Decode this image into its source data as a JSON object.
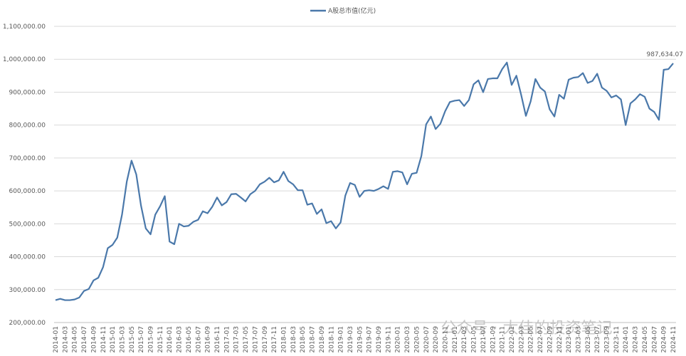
{
  "chart_data": {
    "type": "line",
    "legend_position": "top",
    "categories": [
      "2014-01",
      null,
      "2014-03",
      null,
      "2014-05",
      null,
      "2014-07",
      null,
      "2014-09",
      null,
      "2014-11",
      null,
      "2015-01",
      null,
      "2015-03",
      null,
      "2015-05",
      null,
      "2015-07",
      null,
      "2015-09",
      null,
      "2015-11",
      null,
      "2016-01",
      null,
      "2016-03",
      null,
      "2016-05",
      null,
      "2016-07",
      null,
      "2016-09",
      null,
      "2016-11",
      null,
      "2017-01",
      null,
      "2017-03",
      null,
      "2017-05",
      null,
      "2017-07",
      null,
      "2017-09",
      null,
      "2017-11",
      null,
      "2018-01",
      null,
      "2018-03",
      null,
      "2018-05",
      null,
      "2018-07",
      null,
      "2018-09",
      null,
      "2018-11",
      null,
      "2019-01",
      null,
      "2019-03",
      null,
      "2019-05",
      null,
      "2019-07",
      null,
      "2019-09",
      null,
      "2019-11",
      null,
      "2020-01",
      null,
      "2020-03",
      null,
      "2020-05",
      null,
      "2020-07",
      null,
      "2020-09",
      null,
      "2020-11",
      null,
      "2021-01",
      null,
      "2021-03",
      null,
      "2021-05",
      null,
      "2021-07",
      null,
      "2021-09",
      null,
      "2021-11",
      null,
      "2022-01",
      null,
      "2022-03",
      null,
      "2022-05",
      null,
      "2022-07",
      null,
      "2022-09",
      null,
      "2022-11",
      null,
      "2023-01",
      null,
      "2023-03",
      null,
      "2023-05",
      null,
      "2023-07",
      null,
      "2023-09",
      null,
      "2023-11",
      null,
      "2024-01",
      null,
      "2024-03",
      null,
      "2024-05",
      null,
      "2024-07",
      null,
      "2024-09",
      null,
      "2024-11"
    ],
    "series": [
      {
        "name": "A股总市值(亿元)",
        "color": "#4a78aa",
        "values": [
          268000,
          272000,
          268000,
          268000,
          270000,
          276000,
          296000,
          302000,
          328000,
          336000,
          368000,
          426000,
          436000,
          458000,
          528000,
          628000,
          692000,
          650000,
          555000,
          486000,
          468000,
          528000,
          553000,
          584000,
          446000,
          438000,
          500000,
          492000,
          494000,
          506000,
          512000,
          538000,
          532000,
          552000,
          580000,
          556000,
          566000,
          590000,
          591000,
          580000,
          568000,
          590000,
          600000,
          620000,
          628000,
          640000,
          626000,
          632000,
          658000,
          630000,
          620000,
          602000,
          602000,
          558000,
          562000,
          530000,
          544000,
          502000,
          508000,
          486000,
          504000,
          586000,
          624000,
          618000,
          582000,
          600000,
          602000,
          600000,
          606000,
          614000,
          606000,
          658000,
          660000,
          656000,
          620000,
          652000,
          655000,
          706000,
          802000,
          826000,
          788000,
          804000,
          842000,
          870000,
          874000,
          876000,
          858000,
          876000,
          924000,
          936000,
          900000,
          940000,
          942000,
          942000,
          970000,
          990000,
          922000,
          950000,
          892000,
          828000,
          872000,
          940000,
          914000,
          902000,
          848000,
          826000,
          892000,
          880000,
          938000,
          944000,
          946000,
          958000,
          928000,
          934000,
          956000,
          914000,
          904000,
          884000,
          890000,
          878000,
          800000,
          866000,
          878000,
          894000,
          886000,
          850000,
          840000,
          816000,
          968000,
          970000,
          987634.07
        ],
        "value_labels": [
          null,
          null,
          null,
          null,
          null,
          null,
          null,
          null,
          null,
          null,
          null,
          null,
          null,
          null,
          null,
          null,
          null,
          null,
          null,
          null,
          null,
          null,
          null,
          null,
          null,
          null,
          null,
          null,
          null,
          null,
          null,
          null,
          null,
          null,
          null,
          null,
          null,
          null,
          null,
          null,
          null,
          null,
          null,
          null,
          null,
          null,
          null,
          null,
          null,
          null,
          null,
          null,
          null,
          null,
          null,
          null,
          null,
          null,
          null,
          null,
          null,
          null,
          null,
          null,
          null,
          null,
          null,
          null,
          null,
          null,
          null,
          null,
          null,
          null,
          null,
          null,
          null,
          null,
          null,
          null,
          null,
          null,
          null,
          null,
          null,
          null,
          null,
          null,
          null,
          null,
          null,
          null,
          null,
          null,
          null,
          null,
          null,
          null,
          null,
          null,
          null,
          null,
          null,
          null,
          null,
          null,
          null,
          null,
          null,
          null,
          null,
          null,
          null,
          null,
          null,
          null,
          null,
          null,
          null,
          null,
          null,
          null,
          null,
          null,
          null,
          null,
          null,
          null,
          null,
          null,
          "987,634.07"
        ]
      }
    ],
    "ylim": [
      200000,
      1100000
    ],
    "yticks": [
      {
        "value": 200000,
        "label": "200,000.00"
      },
      {
        "value": 300000,
        "label": "300,000.00"
      },
      {
        "value": 400000,
        "label": "400,000.00"
      },
      {
        "value": 500000,
        "label": "500,000.00"
      },
      {
        "value": 600000,
        "label": "600,000.00"
      },
      {
        "value": 700000,
        "label": "700,000.00"
      },
      {
        "value": 800000,
        "label": "800,000.00"
      },
      {
        "value": 900000,
        "label": "900,000.00"
      },
      {
        "value": 1000000,
        "label": "1,000,000.00"
      },
      {
        "value": 1100000,
        "label": "1,100,000.00"
      }
    ],
    "grid": true,
    "watermark": "公众号 · 大佳的投资笔记"
  }
}
